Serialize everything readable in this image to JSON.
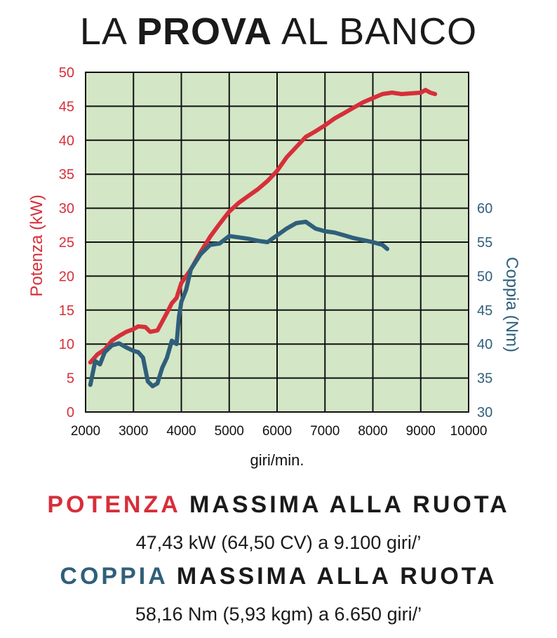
{
  "title": {
    "part1": "LA ",
    "part2": "PROVA",
    "part3": " AL BANCO"
  },
  "summary": {
    "power_keyword": "POTENZA",
    "power_rest": " MASSIMA ALLA RUOTA",
    "power_detail": "47,43 kW (64,50 CV) a 9.100 giri/’",
    "torque_keyword": "COPPIA",
    "torque_rest": " MASSIMA ALLA RUOTA",
    "torque_detail": "58,16 Nm (5,93 kgm) a 6.650 giri/’"
  },
  "chart_data": {
    "type": "line",
    "xlabel": "giri/min.",
    "xlim": [
      2000,
      10000
    ],
    "x_ticks": [
      2000,
      3000,
      4000,
      5000,
      6000,
      7000,
      8000,
      9000,
      10000
    ],
    "y_left": {
      "label": "Potenza (kW)",
      "lim": [
        0,
        50
      ],
      "ticks": [
        0,
        5,
        10,
        15,
        20,
        25,
        30,
        35,
        40,
        45,
        50
      ],
      "color": "#d62f3a"
    },
    "y_right": {
      "label": "Coppia (Nm)",
      "lim": [
        30,
        60
      ],
      "ticks": [
        30,
        35,
        40,
        45,
        50,
        55,
        60
      ],
      "color": "#2f5f7a"
    },
    "grid": true,
    "plot_background": "#d3e6c6",
    "series": [
      {
        "axis": "left",
        "color": "#d62f3a",
        "x": [
          2100,
          2250,
          2400,
          2550,
          2700,
          2850,
          3000,
          3100,
          3250,
          3350,
          3500,
          3600,
          3700,
          3800,
          3900,
          4000,
          4200,
          4400,
          4600,
          4800,
          5000,
          5200,
          5400,
          5600,
          5800,
          6000,
          6200,
          6400,
          6600,
          6800,
          7000,
          7200,
          7400,
          7600,
          7800,
          8000,
          8200,
          8400,
          8600,
          8800,
          9000,
          9100,
          9200,
          9300
        ],
        "y": [
          7.3,
          8.5,
          9.2,
          10.5,
          11.2,
          11.8,
          12.2,
          12.6,
          12.5,
          11.8,
          12.0,
          13.3,
          14.6,
          16.0,
          16.8,
          19.0,
          21.0,
          23.5,
          25.8,
          27.7,
          29.5,
          30.8,
          31.8,
          32.8,
          34.0,
          35.5,
          37.5,
          39.0,
          40.5,
          41.3,
          42.2,
          43.2,
          44.0,
          44.8,
          45.6,
          46.2,
          46.8,
          47.0,
          46.8,
          46.9,
          47.0,
          47.4,
          47.0,
          46.8
        ]
      },
      {
        "axis": "right",
        "color": "#2f5f7a",
        "x": [
          2100,
          2200,
          2300,
          2400,
          2550,
          2700,
          2850,
          3000,
          3100,
          3200,
          3300,
          3400,
          3500,
          3600,
          3700,
          3800,
          3900,
          3950,
          4000,
          4100,
          4200,
          4400,
          4600,
          4800,
          5000,
          5200,
          5400,
          5600,
          5800,
          6000,
          6200,
          6400,
          6600,
          6800,
          7000,
          7200,
          7400,
          7600,
          7800,
          8000,
          8200,
          8300
        ],
        "y": [
          34.0,
          37.5,
          37.0,
          38.8,
          39.8,
          40.1,
          39.5,
          39.0,
          38.8,
          38.0,
          34.5,
          33.8,
          34.2,
          36.5,
          38.0,
          40.5,
          40.0,
          44.0,
          46.2,
          48.0,
          51.0,
          53.2,
          54.6,
          54.8,
          55.9,
          55.7,
          55.5,
          55.2,
          55.0,
          56.0,
          57.0,
          57.8,
          58.0,
          57.0,
          56.6,
          56.4,
          56.0,
          55.6,
          55.3,
          55.0,
          54.6,
          54.0
        ]
      }
    ]
  }
}
